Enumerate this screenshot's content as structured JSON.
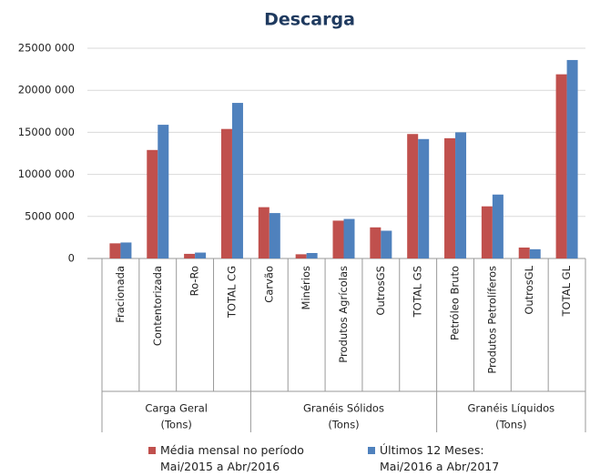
{
  "chart_data": {
    "type": "bar",
    "title": "Descarga",
    "groups": [
      {
        "label": [
          "Carga Geral",
          "(Tons)"
        ],
        "categories": [
          "Fracionada",
          "Contentorizada",
          "Ro-Ro",
          "TOTAL CG"
        ]
      },
      {
        "label": [
          "Granéis Sólidos",
          "(Tons)"
        ],
        "categories": [
          "Carvão",
          "Minérios",
          "Produtos Agrícolas",
          "OutrosGS",
          "TOTAL GS"
        ]
      },
      {
        "label": [
          "Granéis Líquidos",
          "(Tons)"
        ],
        "categories": [
          "Petróleo Bruto",
          "Produtos Petrolíferos",
          "OutrosGL",
          "TOTAL GL"
        ]
      }
    ],
    "series": [
      {
        "name": "Média mensal no período Mai/2015 a Abr/2016",
        "color": "#c0504d",
        "values": [
          1800000,
          12900000,
          550000,
          15400000,
          6100000,
          500000,
          4500000,
          3700000,
          14800000,
          14300000,
          6200000,
          1300000,
          21900000
        ]
      },
      {
        "name": "Últimos 12 Meses: Mai/2016 a Abr/2017",
        "color": "#4f81bd",
        "values": [
          1900000,
          15900000,
          700000,
          18500000,
          5400000,
          650000,
          4700000,
          3300000,
          14200000,
          15000000,
          7600000,
          1100000,
          23600000
        ]
      }
    ],
    "ylim": [
      0,
      25000000
    ],
    "yticks": [
      0,
      {
        "value": 5000000,
        "label": "5000 000"
      },
      {
        "value": 10000000,
        "label": "10000 000"
      },
      {
        "value": 15000000,
        "label": "15000 000"
      },
      {
        "value": 20000000,
        "label": "20000 000"
      },
      {
        "value": 25000000,
        "label": "25000 000"
      }
    ],
    "grid": true
  }
}
